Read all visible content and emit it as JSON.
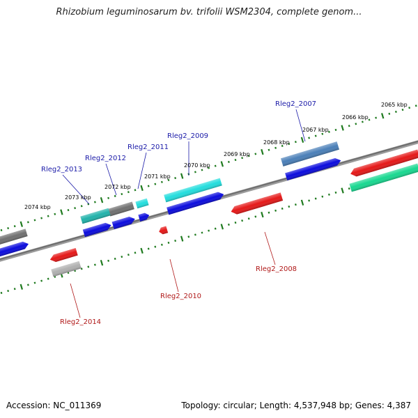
{
  "title": "Rhizobium leguminosarum bv. trifolii WSM2304, complete genom...",
  "footer": {
    "accession": "Accession: NC_011369",
    "summary": "Topology: circular; Length: 4,537,948 bp; Genes: 4,387"
  },
  "colors": {
    "backbone": "#808080",
    "ticks": "#1f7a1f",
    "label_forward": "#1a1aa8",
    "label_reverse": "#b01818",
    "leader": "#5577aa",
    "leader_reverse": "#cc4444"
  },
  "ticks": [
    {
      "label": "2065 kbp"
    },
    {
      "label": "2066 kbp"
    },
    {
      "label": "2067 kbp"
    },
    {
      "label": "2068 kbp"
    },
    {
      "label": "2069 kbp"
    },
    {
      "label": "2070 kbp"
    },
    {
      "label": "2071 kbp"
    },
    {
      "label": "2072 kbp"
    },
    {
      "label": "2073 kbp"
    },
    {
      "label": "2074 kbp"
    }
  ],
  "gene_labels": [
    {
      "name": "Rleg2_2007",
      "strand": "forward"
    },
    {
      "name": "Rleg2_2009",
      "strand": "forward"
    },
    {
      "name": "Rleg2_2011",
      "strand": "forward"
    },
    {
      "name": "Rleg2_2012",
      "strand": "forward"
    },
    {
      "name": "Rleg2_2013",
      "strand": "forward"
    },
    {
      "name": "Rleg2_2008",
      "strand": "reverse"
    },
    {
      "name": "Rleg2_2010",
      "strand": "reverse"
    },
    {
      "name": "Rleg2_2014",
      "strand": "reverse"
    }
  ],
  "features": [
    {
      "id": "outer-steelblue",
      "color": "#4a7fb8"
    },
    {
      "id": "outer-cyan",
      "color": "#22dddd"
    },
    {
      "id": "outer-cyan-small",
      "color": "#22dddd"
    },
    {
      "id": "outer-gray",
      "color": "#707070"
    },
    {
      "id": "outer-teal",
      "color": "#20b2aa"
    },
    {
      "id": "outer-gray-left",
      "color": "#707070"
    },
    {
      "id": "blue-2007",
      "color": "#0b0bdd"
    },
    {
      "id": "blue-2009",
      "color": "#0b0bdd"
    },
    {
      "id": "blue-2011",
      "color": "#0b0bdd"
    },
    {
      "id": "blue-2012",
      "color": "#0b0bdd"
    },
    {
      "id": "blue-2013",
      "color": "#0b0bdd"
    },
    {
      "id": "blue-left",
      "color": "#0b0bdd"
    },
    {
      "id": "red-right",
      "color": "#e51818"
    },
    {
      "id": "green-right",
      "color": "#18d890"
    },
    {
      "id": "red-2008",
      "color": "#e51818"
    },
    {
      "id": "red-2010",
      "color": "#e51818"
    },
    {
      "id": "red-2014",
      "color": "#e51818"
    },
    {
      "id": "gray-2014",
      "color": "#b0b0b0"
    }
  ]
}
